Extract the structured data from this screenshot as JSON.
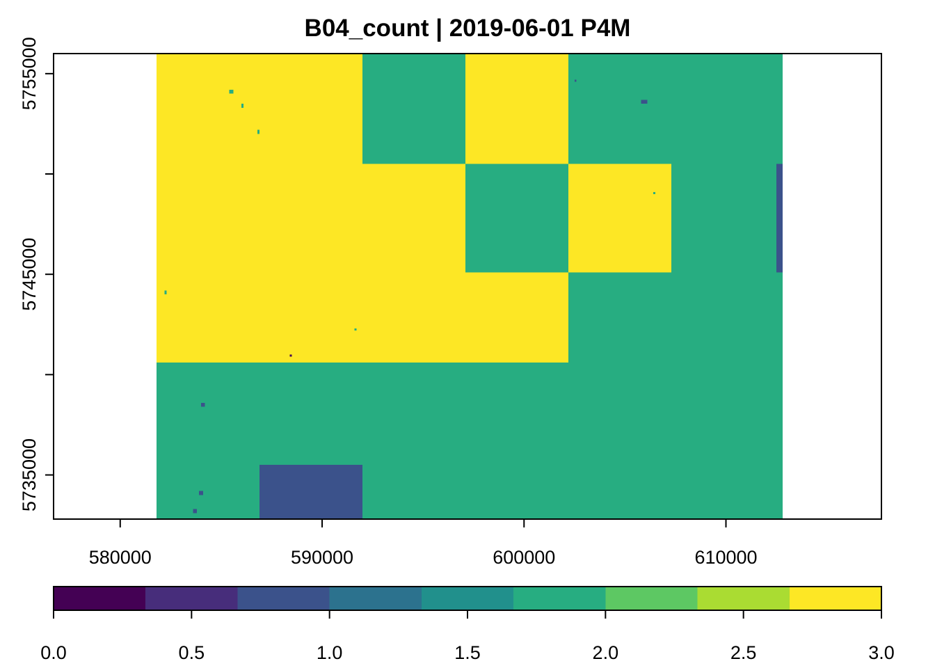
{
  "chart_data": {
    "type": "heatmap",
    "title": "B04_count | 2019-06-01 P4M",
    "xlabel": "",
    "ylabel": "",
    "xlim": [
      576700,
      617700
    ],
    "ylim": [
      5732800,
      5756000
    ],
    "x_ticks": [
      580000,
      590000,
      600000,
      610000
    ],
    "x_tick_labels": [
      "580000",
      "590000",
      "600000",
      "610000"
    ],
    "y_ticks": [
      5735000,
      5740000,
      5745000,
      5750000,
      5755000
    ],
    "y_tick_labels": [
      "5735000",
      "",
      "5745000",
      "",
      "5755000"
    ],
    "grid": false,
    "tiles": [
      {
        "x": [
          581800,
          592000
        ],
        "y": [
          5740600,
          5756000
        ],
        "value": 3
      },
      {
        "x": [
          592000,
          597100
        ],
        "y": [
          5745100,
          5750500
        ],
        "value": 3
      },
      {
        "x": [
          597100,
          602200
        ],
        "y": [
          5740600,
          5745100
        ],
        "value": 3
      },
      {
        "x": [
          592000,
          597100
        ],
        "y": [
          5740600,
          5745100
        ],
        "value": 3
      },
      {
        "x": [
          592000,
          597100
        ],
        "y": [
          5750500,
          5756000
        ],
        "value": 2
      },
      {
        "x": [
          597100,
          602200
        ],
        "y": [
          5750500,
          5756000
        ],
        "value": 3
      },
      {
        "x": [
          602200,
          612800
        ],
        "y": [
          5750500,
          5756000
        ],
        "value": 2
      },
      {
        "x": [
          597100,
          602200
        ],
        "y": [
          5745100,
          5750500
        ],
        "value": 2
      },
      {
        "x": [
          602200,
          607300
        ],
        "y": [
          5745100,
          5750500
        ],
        "value": 3
      },
      {
        "x": [
          607300,
          612800
        ],
        "y": [
          5745100,
          5750500
        ],
        "value": 2
      },
      {
        "x": [
          602200,
          612800
        ],
        "y": [
          5740600,
          5745100
        ],
        "value": 2
      },
      {
        "x": [
          581800,
          612800
        ],
        "y": [
          5732800,
          5740600
        ],
        "value": 2
      },
      {
        "x": [
          586900,
          592000
        ],
        "y": [
          5732800,
          5735500
        ],
        "value": 1
      },
      {
        "x": [
          612500,
          612800
        ],
        "y": [
          5745100,
          5750500
        ],
        "value": 1
      }
    ],
    "specks": [
      {
        "x": [
          585400,
          585600
        ],
        "y": [
          5754000,
          5754200
        ],
        "value": 2
      },
      {
        "x": [
          586000,
          586100
        ],
        "y": [
          5753300,
          5753500
        ],
        "value": 2
      },
      {
        "x": [
          586800,
          586900
        ],
        "y": [
          5752000,
          5752200
        ],
        "value": 2
      },
      {
        "x": [
          583900,
          584100
        ],
        "y": [
          5734000,
          5734200
        ],
        "value": 1
      },
      {
        "x": [
          583600,
          583800
        ],
        "y": [
          5733100,
          5733300
        ],
        "value": 1
      },
      {
        "x": [
          605800,
          606100
        ],
        "y": [
          5753500,
          5753700
        ],
        "value": 1
      },
      {
        "x": [
          584000,
          584200
        ],
        "y": [
          5738400,
          5738600
        ],
        "value": 1
      },
      {
        "x": [
          602500,
          602600
        ],
        "y": [
          5754600,
          5754700
        ],
        "value": 1
      },
      {
        "x": [
          588400,
          588500
        ],
        "y": [
          5740900,
          5741000
        ],
        "value": 0
      },
      {
        "x": [
          591600,
          591700
        ],
        "y": [
          5742200,
          5742300
        ],
        "value": 2
      },
      {
        "x": [
          606400,
          606500
        ],
        "y": [
          5749000,
          5749100
        ],
        "value": 2
      },
      {
        "x": [
          582200,
          582300
        ],
        "y": [
          5744000,
          5744200
        ],
        "value": 2
      }
    ],
    "colorbar": {
      "range": [
        0,
        3
      ],
      "ticks": [
        0,
        0.5,
        1,
        1.5,
        2,
        2.5,
        3
      ],
      "tick_labels": [
        "0.0",
        "0.5",
        "1.0",
        "1.5",
        "2.0",
        "2.5",
        "3.0"
      ],
      "bins": [
        {
          "from": 0.0,
          "to": 0.333,
          "color": "#440154"
        },
        {
          "from": 0.333,
          "to": 0.667,
          "color": "#472D7B"
        },
        {
          "from": 0.667,
          "to": 1.0,
          "color": "#3B528B"
        },
        {
          "from": 1.0,
          "to": 1.333,
          "color": "#2C728E"
        },
        {
          "from": 1.333,
          "to": 1.667,
          "color": "#21908C"
        },
        {
          "from": 1.667,
          "to": 2.0,
          "color": "#27AD81"
        },
        {
          "from": 2.0,
          "to": 2.333,
          "color": "#5DC863"
        },
        {
          "from": 2.333,
          "to": 2.667,
          "color": "#AADC32"
        },
        {
          "from": 2.667,
          "to": 3.0,
          "color": "#FDE725"
        }
      ]
    },
    "value_colors": {
      "0": "#440154",
      "1": "#3B528B",
      "2": "#27AD81",
      "3": "#FDE725"
    }
  }
}
